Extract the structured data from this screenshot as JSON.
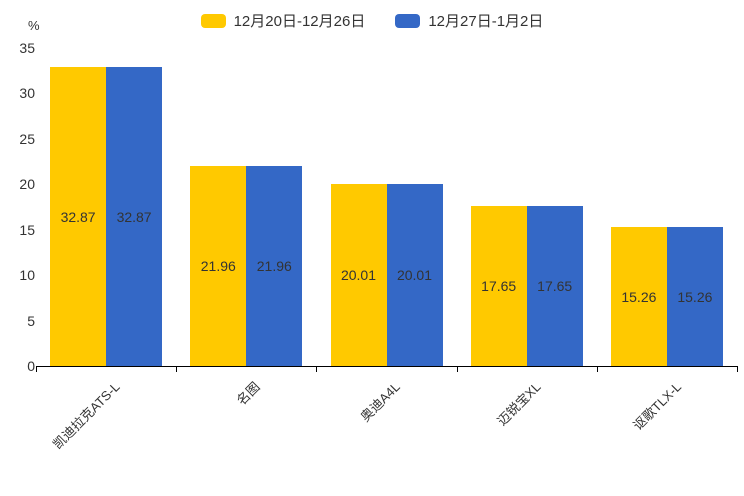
{
  "chart_data": {
    "type": "bar",
    "title": "",
    "unit_label": "%",
    "categories": [
      "凯迪拉克ATS-L",
      "名图",
      "奥迪A4L",
      "迈锐宝XL",
      "讴歌TLX-L"
    ],
    "series": [
      {
        "name": "12月20日-12月26日",
        "color": "#FFC900",
        "values": [
          32.87,
          21.96,
          20.01,
          17.65,
          15.26
        ]
      },
      {
        "name": "12月27日-1月2日",
        "color": "#3468C6",
        "values": [
          32.87,
          21.96,
          20.01,
          17.65,
          15.26
        ]
      }
    ],
    "ylim": [
      0,
      35
    ],
    "y_ticks": [
      0,
      5,
      10,
      15,
      20,
      25,
      30,
      35
    ],
    "legend_position": "top-center",
    "grid": false,
    "value_label_position": "inside-center",
    "axis_color": "#000000",
    "text_color": "#333333"
  }
}
